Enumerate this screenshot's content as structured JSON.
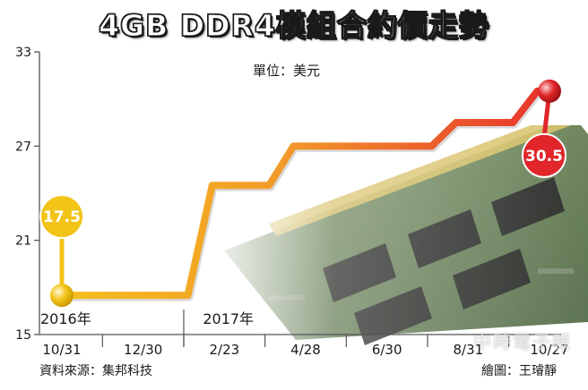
{
  "title": "4GB DDR4模組合約價走勢",
  "unit_label": "單位：美元",
  "source": "資料來源：集邦科技",
  "credit": "繪圖：王璿靜",
  "watermark": "中時電子報",
  "colors": {
    "line_start": "#f5be1e",
    "line_end": "#e8322c",
    "start_badge": "#f2c418",
    "end_badge": "#e0262a",
    "axis": "#555555"
  },
  "chart_data": {
    "type": "line",
    "title": "4GB DDR4模組合約價走勢",
    "unit": "單位：美元",
    "ylim": [
      15,
      33
    ],
    "yticks": [
      15,
      21,
      27,
      33
    ],
    "x": [
      "10/31",
      "12/30",
      "2/23",
      "4/28",
      "6/30",
      "8/31",
      "10/27"
    ],
    "year_labels": [
      {
        "label": "2016年",
        "at": "10/31"
      },
      {
        "label": "2017年",
        "at": "2/23"
      }
    ],
    "series": [
      {
        "values": [
          17.5,
          17.5,
          24.5,
          27.0,
          27.0,
          28.5,
          30.5
        ]
      }
    ],
    "annotations": [
      {
        "label": "17.5",
        "at": "10/31",
        "value": 17.5
      },
      {
        "label": "30.5",
        "at": "10/27",
        "value": 30.5
      }
    ],
    "grid": false,
    "legend": "none"
  }
}
